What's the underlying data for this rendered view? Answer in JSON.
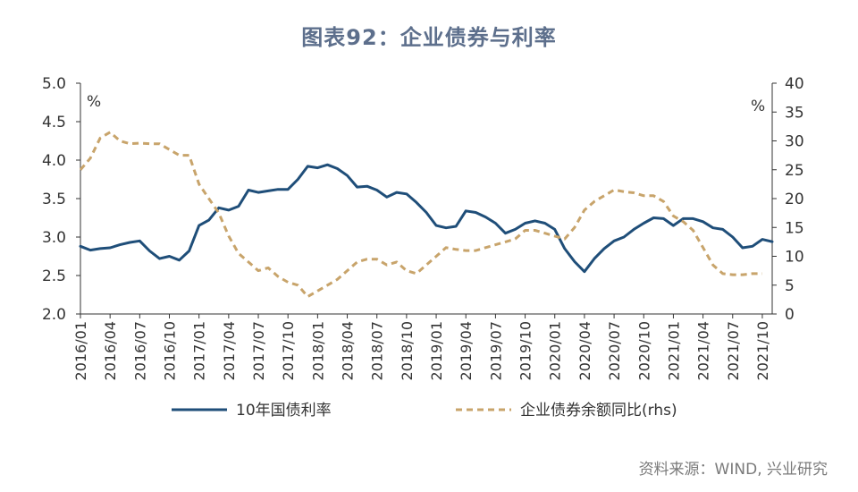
{
  "title": "图表92：企业债券与利率",
  "source": "资料来源：WIND, 兴业研究",
  "colors": {
    "primary": "#1f4e79",
    "secondary": "#c8a46b",
    "axis": "#333333",
    "title": "#5d6f8c"
  },
  "chart_data": {
    "type": "line",
    "title": "图表92：企业债券与利率",
    "left_unit": "%",
    "right_unit": "%",
    "ylim_left": [
      2.0,
      5.0
    ],
    "ylim_right": [
      0,
      40
    ],
    "yticks_left": [
      "5.0",
      "4.5",
      "4.0",
      "3.5",
      "3.0",
      "2.5",
      "2.0"
    ],
    "yticks_right": [
      "40",
      "35",
      "30",
      "25",
      "20",
      "15",
      "10",
      "5",
      "0"
    ],
    "x_labels": [
      "2016/01",
      "2016/04",
      "2016/07",
      "2016/10",
      "2017/01",
      "2017/04",
      "2017/07",
      "2017/10",
      "2018/01",
      "2018/04",
      "2018/07",
      "2018/10",
      "2019/01",
      "2019/04",
      "2019/07",
      "2019/10",
      "2020/01",
      "2020/04",
      "2020/07",
      "2020/10",
      "2021/01",
      "2021/04",
      "2021/07",
      "2021/10"
    ],
    "grid": false,
    "legend_position": "bottom",
    "series": [
      {
        "name": "10年国债利率",
        "axis": "left",
        "style": "solid",
        "x": [
          "2016/01",
          "2016/02",
          "2016/03",
          "2016/04",
          "2016/05",
          "2016/06",
          "2016/07",
          "2016/08",
          "2016/09",
          "2016/10",
          "2016/11",
          "2016/12",
          "2017/01",
          "2017/02",
          "2017/03",
          "2017/04",
          "2017/05",
          "2017/06",
          "2017/07",
          "2017/08",
          "2017/09",
          "2017/10",
          "2017/11",
          "2017/12",
          "2018/01",
          "2018/02",
          "2018/03",
          "2018/04",
          "2018/05",
          "2018/06",
          "2018/07",
          "2018/08",
          "2018/09",
          "2018/10",
          "2018/11",
          "2018/12",
          "2019/01",
          "2019/02",
          "2019/03",
          "2019/04",
          "2019/05",
          "2019/06",
          "2019/07",
          "2019/08",
          "2019/09",
          "2019/10",
          "2019/11",
          "2019/12",
          "2020/01",
          "2020/02",
          "2020/03",
          "2020/04",
          "2020/05",
          "2020/06",
          "2020/07",
          "2020/08",
          "2020/09",
          "2020/10",
          "2020/11",
          "2020/12",
          "2021/01",
          "2021/02",
          "2021/03",
          "2021/04",
          "2021/05",
          "2021/06",
          "2021/07",
          "2021/08",
          "2021/09",
          "2021/10",
          "2021/11"
        ],
        "values": [
          2.88,
          2.83,
          2.85,
          2.86,
          2.9,
          2.93,
          2.95,
          2.82,
          2.72,
          2.75,
          2.7,
          2.82,
          3.15,
          3.22,
          3.38,
          3.35,
          3.4,
          3.61,
          3.58,
          3.6,
          3.62,
          3.62,
          3.75,
          3.92,
          3.9,
          3.94,
          3.89,
          3.8,
          3.65,
          3.66,
          3.61,
          3.52,
          3.58,
          3.56,
          3.45,
          3.32,
          3.15,
          3.12,
          3.14,
          3.34,
          3.32,
          3.26,
          3.18,
          3.05,
          3.1,
          3.18,
          3.21,
          3.18,
          3.1,
          2.85,
          2.68,
          2.55,
          2.72,
          2.85,
          2.95,
          3.0,
          3.1,
          3.18,
          3.25,
          3.24,
          3.15,
          3.24,
          3.24,
          3.2,
          3.12,
          3.1,
          3.0,
          2.86,
          2.88,
          2.97,
          2.94
        ]
      },
      {
        "name": "企业债券余额同比(rhs)",
        "axis": "right",
        "style": "dashed",
        "x": [
          "2016/01",
          "2016/02",
          "2016/03",
          "2016/04",
          "2016/05",
          "2016/06",
          "2016/07",
          "2016/08",
          "2016/09",
          "2016/10",
          "2016/11",
          "2016/12",
          "2017/01",
          "2017/02",
          "2017/03",
          "2017/04",
          "2017/05",
          "2017/06",
          "2017/07",
          "2017/08",
          "2017/09",
          "2017/10",
          "2017/11",
          "2017/12",
          "2018/01",
          "2018/02",
          "2018/03",
          "2018/04",
          "2018/05",
          "2018/06",
          "2018/07",
          "2018/08",
          "2018/09",
          "2018/10",
          "2018/11",
          "2018/12",
          "2019/01",
          "2019/02",
          "2019/03",
          "2019/04",
          "2019/05",
          "2019/06",
          "2019/07",
          "2019/08",
          "2019/09",
          "2019/10",
          "2019/11",
          "2019/12",
          "2020/01",
          "2020/02",
          "2020/03",
          "2020/04",
          "2020/05",
          "2020/06",
          "2020/07",
          "2020/08",
          "2020/09",
          "2020/10",
          "2020/11",
          "2020/12",
          "2021/01",
          "2021/02",
          "2021/03",
          "2021/04",
          "2021/05",
          "2021/06",
          "2021/07",
          "2021/08",
          "2021/09",
          "2021/10"
        ],
        "values": [
          25,
          27,
          30.5,
          31.5,
          30,
          29.5,
          29.6,
          29.5,
          29.5,
          28.5,
          27.5,
          27.5,
          22.5,
          20,
          17.5,
          13.5,
          10.5,
          9,
          7.5,
          8,
          6.5,
          5.5,
          5,
          3,
          4,
          5,
          6,
          7.5,
          9,
          9.5,
          9.5,
          8.5,
          9,
          7.5,
          7,
          8.5,
          10,
          11.5,
          11.2,
          11,
          11,
          11.5,
          12,
          12.5,
          13,
          14.5,
          14.5,
          14,
          13.5,
          13,
          15,
          18,
          19.5,
          20.5,
          21.5,
          21.2,
          21,
          20.5,
          20.5,
          19.5,
          17,
          16,
          14.5,
          11.5,
          8.5,
          7,
          6.8,
          6.8,
          7,
          7
        ]
      }
    ]
  }
}
